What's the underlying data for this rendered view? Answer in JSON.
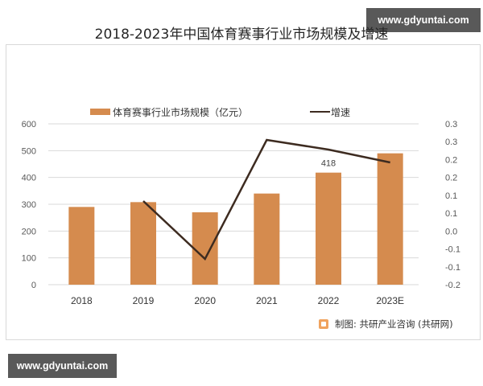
{
  "watermark": {
    "top": "www.gdyuntai.com",
    "bottom": "www.gdyuntai.com"
  },
  "legend": {
    "bar_label": "体育赛事行业市场规模（亿元）",
    "line_label": "增速"
  },
  "source": {
    "icon": "brand-logo-icon",
    "text": "制图: 共研产业咨询 (共研网)"
  },
  "colors": {
    "bar": "#d58b4e",
    "line": "#3d2b20",
    "grid": "#d9d9d9"
  },
  "chart_data": {
    "type": "bar",
    "title": "2018-2023年中国体育赛事行业市场规模及增速",
    "categories": [
      "2018",
      "2019",
      "2020",
      "2021",
      "2022",
      "2023E"
    ],
    "series": [
      {
        "name": "体育赛事行业市场规模（亿元）",
        "type": "bar",
        "axis": "left",
        "values": [
          290,
          308,
          270,
          340,
          418,
          490
        ]
      },
      {
        "name": "增速",
        "type": "line",
        "axis": "right",
        "values": [
          null,
          0.06,
          -0.12,
          0.25,
          0.22,
          0.18
        ]
      }
    ],
    "data_labels": [
      {
        "category": "2022",
        "series": "体育赛事行业市场规模（亿元）",
        "text": "418"
      }
    ],
    "left_axis": {
      "ylim": [
        0,
        600
      ],
      "ticks": [
        "0",
        "100",
        "200",
        "300",
        "400",
        "500",
        "600"
      ]
    },
    "right_axis": {
      "ylim": [
        -0.2,
        0.3
      ],
      "ticks": [
        "-0.2",
        "-0.1",
        "-0.1",
        "0.0",
        "0.1",
        "0.1",
        "0.2",
        "0.2",
        "0.3",
        "0.3"
      ]
    },
    "xlabel": "",
    "ylabel": "",
    "grid": true,
    "legend_position": "top"
  }
}
